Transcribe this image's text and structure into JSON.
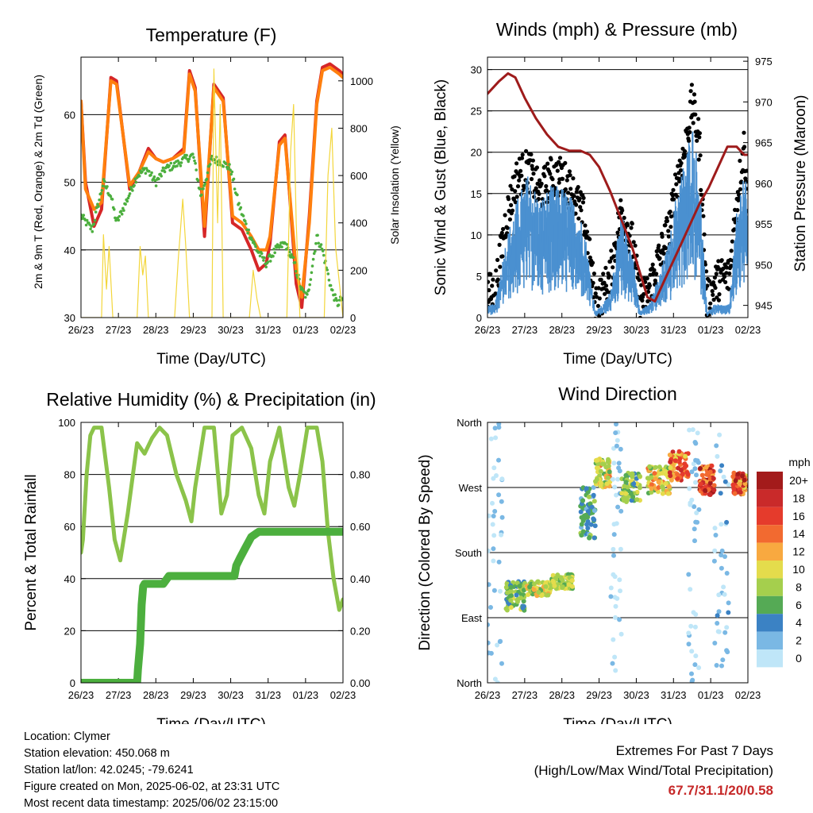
{
  "footer": {
    "location": "Location: Clymer",
    "elevation": "Station elevation: 450.068 m",
    "latlon": "Station lat/lon: 42.0245; -79.6241",
    "created": "Figure created on Mon, 2025-06-02, at 23:31 UTC",
    "recent": "Most recent data timestamp: 2025/06/02 23:15:00",
    "extremes_title": "Extremes For Past 7 Days",
    "extremes_subtitle": "(High/Low/Max Wind/Total Precipitation)",
    "extremes_values": "67.7/31.1/20/0.58"
  },
  "chart_data": [
    {
      "id": "temperature",
      "type": "line",
      "title": "Temperature (F)",
      "xlabel": "Time (Day/UTC)",
      "ylabel": "2m & 9m T (Red, Orange) & 2m Td (Green)",
      "y2label": "Solar Insolation (Yellow)",
      "x_ticks": [
        "26/23",
        "27/23",
        "28/23",
        "29/23",
        "30/23",
        "31/23",
        "01/23",
        "02/23"
      ],
      "xlim": [
        0,
        7
      ],
      "ylim": [
        30,
        68.5
      ],
      "y_ticks": [
        30,
        40,
        50,
        60
      ],
      "y2lim": [
        0,
        1100
      ],
      "y2_ticks": [
        0,
        200,
        400,
        600,
        800,
        1000
      ],
      "grid": true,
      "series": [
        {
          "name": "2m T",
          "color": "#d62728",
          "axis": "left",
          "style": "line",
          "x": [
            0,
            0.12,
            0.35,
            0.55,
            0.8,
            0.95,
            1.3,
            1.55,
            1.8,
            2.0,
            2.2,
            2.45,
            2.75,
            2.9,
            3.05,
            3.3,
            3.55,
            3.8,
            4.05,
            4.3,
            4.55,
            4.75,
            4.95,
            5.05,
            5.3,
            5.45,
            5.55,
            5.75,
            5.9,
            6.1,
            6.3,
            6.45,
            6.65,
            6.9,
            7.0
          ],
          "values": [
            62,
            50,
            43.5,
            46,
            65.5,
            65,
            49,
            51.5,
            55,
            53.5,
            53,
            53.5,
            55,
            66.5,
            64,
            42,
            64.5,
            62.5,
            44,
            43,
            40,
            37,
            38,
            41,
            56,
            57,
            50,
            35,
            31.5,
            45,
            62,
            67,
            67.5,
            66.5,
            66
          ]
        },
        {
          "name": "9m T",
          "color": "#ff7f0e",
          "axis": "left",
          "style": "line",
          "x": [
            0,
            0.12,
            0.35,
            0.55,
            0.8,
            0.95,
            1.3,
            1.55,
            1.8,
            2.0,
            2.2,
            2.45,
            2.75,
            2.9,
            3.05,
            3.3,
            3.55,
            3.8,
            4.05,
            4.3,
            4.55,
            4.75,
            4.95,
            5.05,
            5.3,
            5.45,
            5.55,
            5.75,
            5.9,
            6.1,
            6.3,
            6.45,
            6.65,
            6.9,
            7.0
          ],
          "values": [
            62,
            49,
            46,
            47,
            65,
            64.5,
            49.5,
            51.5,
            54.5,
            53.5,
            53,
            53.5,
            54.5,
            66,
            63.5,
            43.5,
            64,
            62,
            45,
            44,
            42,
            40,
            40,
            42,
            55.5,
            56.5,
            50,
            37,
            33,
            44,
            61.5,
            66.5,
            67,
            66,
            65.5
          ]
        },
        {
          "name": "2m Td",
          "color": "#4caf3e",
          "axis": "left",
          "style": "points",
          "x": [
            0,
            0.3,
            0.6,
            0.8,
            0.95,
            1.2,
            1.5,
            1.75,
            2.0,
            2.25,
            2.5,
            2.8,
            3.0,
            3.2,
            3.5,
            3.75,
            4.0,
            4.2,
            4.45,
            4.7,
            4.95,
            5.2,
            5.45,
            5.7,
            5.9,
            6.05,
            6.3,
            6.45,
            6.7,
            6.85,
            7.0
          ],
          "values": [
            45,
            43,
            50,
            48,
            44,
            47,
            51,
            52,
            50,
            52,
            52.5,
            53.5,
            54,
            48,
            53.5,
            53,
            52,
            47,
            43,
            40,
            38,
            40,
            41,
            38,
            34,
            33,
            42,
            40,
            34,
            32,
            33
          ]
        },
        {
          "name": "Solar Insolation",
          "color": "#f3d63b",
          "axis": "right",
          "style": "line",
          "x": [
            0,
            0.55,
            0.6,
            0.68,
            0.75,
            0.85,
            1.5,
            1.58,
            1.65,
            1.72,
            1.8,
            2.5,
            2.6,
            2.72,
            2.8,
            2.9,
            3.5,
            3.55,
            3.65,
            3.72,
            3.8,
            4.5,
            4.6,
            4.7,
            4.8,
            5.5,
            5.6,
            5.68,
            5.75,
            5.85,
            6.5,
            6.6,
            6.7,
            6.8,
            7.0
          ],
          "values": [
            0,
            0,
            350,
            120,
            300,
            0,
            0,
            300,
            180,
            260,
            0,
            0,
            250,
            500,
            300,
            0,
            0,
            1050,
            400,
            900,
            0,
            0,
            200,
            80,
            0,
            0,
            700,
            900,
            400,
            0,
            0,
            600,
            800,
            300,
            0
          ]
        }
      ]
    },
    {
      "id": "winds",
      "type": "scatter",
      "title": "Winds (mph) & Pressure (mb)",
      "xlabel": "Time (Day/UTC)",
      "ylabel": "Sonic Wind & Gust (Blue, Black)",
      "y2label": "Station Pressure (Maroon)",
      "x_ticks": [
        "26/23",
        "27/23",
        "28/23",
        "29/23",
        "30/23",
        "31/23",
        "01/23",
        "02/23"
      ],
      "xlim": [
        0,
        7
      ],
      "ylim": [
        0,
        31.5
      ],
      "y_ticks": [
        0,
        5,
        10,
        15,
        20,
        25,
        30
      ],
      "y2lim": [
        943.5,
        975.5
      ],
      "y2_ticks": [
        945,
        950,
        955,
        960,
        965,
        970,
        975
      ],
      "grid": true,
      "series": [
        {
          "name": "Sonic Wind",
          "color": "#4a90d0",
          "axis": "left",
          "style": "band",
          "x": [
            0,
            0.2,
            0.5,
            0.8,
            1.1,
            1.4,
            1.7,
            2.0,
            2.3,
            2.6,
            2.9,
            3.1,
            3.3,
            3.6,
            3.9,
            4.1,
            4.3,
            4.6,
            4.9,
            5.1,
            5.3,
            5.5,
            5.7,
            5.9,
            6.1,
            6.3,
            6.5,
            6.7,
            6.9,
            7.0
          ],
          "values": [
            1,
            1,
            6,
            9,
            11,
            9,
            10,
            10,
            9,
            7,
            0.5,
            1,
            2,
            8,
            5,
            0.5,
            1,
            3,
            6,
            10,
            12,
            15,
            11,
            0.5,
            1,
            1,
            1,
            8,
            12,
            8
          ]
        },
        {
          "name": "Gust",
          "color": "#000000",
          "axis": "left",
          "style": "points",
          "x": [
            0,
            0.2,
            0.5,
            0.8,
            1.1,
            1.4,
            1.7,
            2.0,
            2.3,
            2.6,
            2.9,
            3.1,
            3.3,
            3.6,
            3.9,
            4.1,
            4.3,
            4.6,
            4.9,
            5.1,
            5.3,
            5.5,
            5.7,
            5.9,
            6.1,
            6.3,
            6.5,
            6.7,
            6.9,
            7.0
          ],
          "values": [
            3,
            3,
            12,
            17,
            18,
            15,
            17,
            17,
            15,
            12,
            2,
            3,
            5,
            13,
            9,
            2,
            3,
            7,
            11,
            17,
            20,
            26,
            21,
            2,
            4,
            5,
            5,
            14,
            21,
            14
          ]
        },
        {
          "name": "Station Pressure",
          "color": "#9e1b1b",
          "axis": "right",
          "style": "line",
          "x": [
            0,
            0.3,
            0.55,
            0.75,
            1.0,
            1.3,
            1.6,
            1.9,
            2.2,
            2.5,
            2.75,
            3.0,
            3.3,
            3.6,
            3.9,
            4.1,
            4.3,
            4.5,
            4.7,
            4.95,
            5.2,
            5.45,
            5.7,
            5.95,
            6.2,
            6.45,
            6.7,
            6.9,
            7.0
          ],
          "values": [
            971,
            972.5,
            973.5,
            973,
            970.5,
            968,
            966,
            964.5,
            964,
            964,
            963.5,
            962,
            959,
            955.5,
            952,
            949,
            946,
            945.5,
            947.5,
            950,
            952.5,
            955,
            957.5,
            959.5,
            962,
            964.5,
            964.5,
            963.5,
            963.5
          ]
        }
      ]
    },
    {
      "id": "humidity",
      "type": "line",
      "title": "Relative Humidity (%) & Precipitation (in)",
      "xlabel": "Time (Day/UTC)",
      "ylabel": "Percent & Total Rainfall",
      "x_ticks": [
        "26/23",
        "27/23",
        "28/23",
        "29/23",
        "30/23",
        "31/23",
        "01/23",
        "02/23"
      ],
      "xlim": [
        0,
        7
      ],
      "ylim": [
        0,
        100
      ],
      "y_ticks": [
        0,
        20,
        40,
        60,
        80,
        100
      ],
      "y2lim": [
        0,
        1.0
      ],
      "y2_ticks": [
        "0.00",
        "0.20",
        "0.40",
        "0.60",
        "0.80"
      ],
      "grid": true,
      "series": [
        {
          "name": "Relative Humidity",
          "color": "#8bc34a",
          "axis": "left",
          "style": "line",
          "x": [
            0,
            0.05,
            0.15,
            0.25,
            0.35,
            0.55,
            0.75,
            0.9,
            1.05,
            1.25,
            1.5,
            1.7,
            1.9,
            2.1,
            2.3,
            2.55,
            2.8,
            2.95,
            3.05,
            3.3,
            3.55,
            3.75,
            3.9,
            4.05,
            4.3,
            4.55,
            4.75,
            4.9,
            5.05,
            5.3,
            5.55,
            5.7,
            5.85,
            6.05,
            6.3,
            6.45,
            6.6,
            6.75,
            6.9,
            7.0
          ],
          "values": [
            50,
            55,
            80,
            95,
            98,
            98,
            75,
            55,
            47,
            65,
            92,
            88,
            94,
            98,
            95,
            80,
            70,
            62,
            75,
            98,
            98,
            65,
            72,
            95,
            98,
            90,
            72,
            65,
            85,
            98,
            75,
            68,
            80,
            98,
            98,
            85,
            58,
            40,
            28,
            32
          ]
        },
        {
          "name": "Total Rainfall",
          "color": "#4caf3e",
          "axis": "right",
          "style": "line",
          "x": [
            0,
            1.5,
            1.52,
            1.58,
            1.62,
            1.66,
            1.7,
            2.2,
            2.3,
            2.35,
            4.1,
            4.15,
            4.25,
            4.4,
            4.55,
            4.75,
            7.0
          ],
          "values": [
            0,
            0,
            0.05,
            0.15,
            0.3,
            0.37,
            0.38,
            0.38,
            0.4,
            0.41,
            0.41,
            0.45,
            0.48,
            0.52,
            0.56,
            0.58,
            0.58
          ]
        }
      ]
    },
    {
      "id": "direction",
      "type": "scatter",
      "title": "Wind Direction",
      "xlabel": "Time (Day/UTC)",
      "ylabel": "Direction (Colored By Speed)",
      "x_ticks": [
        "26/23",
        "27/23",
        "28/23",
        "29/23",
        "30/23",
        "31/23",
        "01/23",
        "02/23"
      ],
      "xlim": [
        0,
        7
      ],
      "ylim": [
        0,
        360
      ],
      "y_ticks": [
        {
          "v": 0,
          "label": "North"
        },
        {
          "v": 90,
          "label": "East"
        },
        {
          "v": 180,
          "label": "South"
        },
        {
          "v": 270,
          "label": "West"
        },
        {
          "v": 360,
          "label": "North"
        }
      ],
      "grid": true,
      "legend": {
        "title": "mph",
        "labels": [
          "20+",
          "18",
          "16",
          "14",
          "12",
          "10",
          "8",
          "6",
          "4",
          "2",
          "0"
        ],
        "colors": [
          "#a31b1b",
          "#c92a2a",
          "#e53b2c",
          "#f26a30",
          "#f8a940",
          "#e4dc4c",
          "#a5cf4d",
          "#55aa55",
          "#3b82c4",
          "#7ab8e4",
          "#bfe6f8"
        ],
        "position": "right"
      },
      "clusters": [
        {
          "x": [
            0.0,
            0.4
          ],
          "dir": [
            0,
            360
          ],
          "speed": [
            0,
            2
          ]
        },
        {
          "x": [
            0.5,
            1.0
          ],
          "dir": [
            100,
            140
          ],
          "speed": [
            4,
            10
          ]
        },
        {
          "x": [
            1.0,
            1.7
          ],
          "dir": [
            120,
            140
          ],
          "speed": [
            6,
            12
          ]
        },
        {
          "x": [
            1.7,
            2.3
          ],
          "dir": [
            130,
            150
          ],
          "speed": [
            6,
            10
          ]
        },
        {
          "x": [
            2.5,
            2.9
          ],
          "dir": [
            200,
            270
          ],
          "speed": [
            2,
            8
          ]
        },
        {
          "x": [
            2.9,
            3.3
          ],
          "dir": [
            270,
            310
          ],
          "speed": [
            6,
            14
          ]
        },
        {
          "x": [
            3.3,
            3.6
          ],
          "dir": [
            0,
            360
          ],
          "speed": [
            0,
            2
          ]
        },
        {
          "x": [
            3.6,
            4.1
          ],
          "dir": [
            250,
            290
          ],
          "speed": [
            4,
            10
          ]
        },
        {
          "x": [
            4.3,
            4.9
          ],
          "dir": [
            260,
            300
          ],
          "speed": [
            6,
            14
          ]
        },
        {
          "x": [
            4.9,
            5.4
          ],
          "dir": [
            280,
            320
          ],
          "speed": [
            10,
            18
          ]
        },
        {
          "x": [
            5.4,
            5.7
          ],
          "dir": [
            0,
            360
          ],
          "speed": [
            0,
            2
          ]
        },
        {
          "x": [
            5.7,
            6.1
          ],
          "dir": [
            260,
            300
          ],
          "speed": [
            12,
            20
          ]
        },
        {
          "x": [
            6.1,
            6.5
          ],
          "dir": [
            0,
            360
          ],
          "speed": [
            0,
            4
          ]
        },
        {
          "x": [
            6.6,
            6.95
          ],
          "dir": [
            260,
            290
          ],
          "speed": [
            10,
            20
          ]
        }
      ]
    }
  ]
}
